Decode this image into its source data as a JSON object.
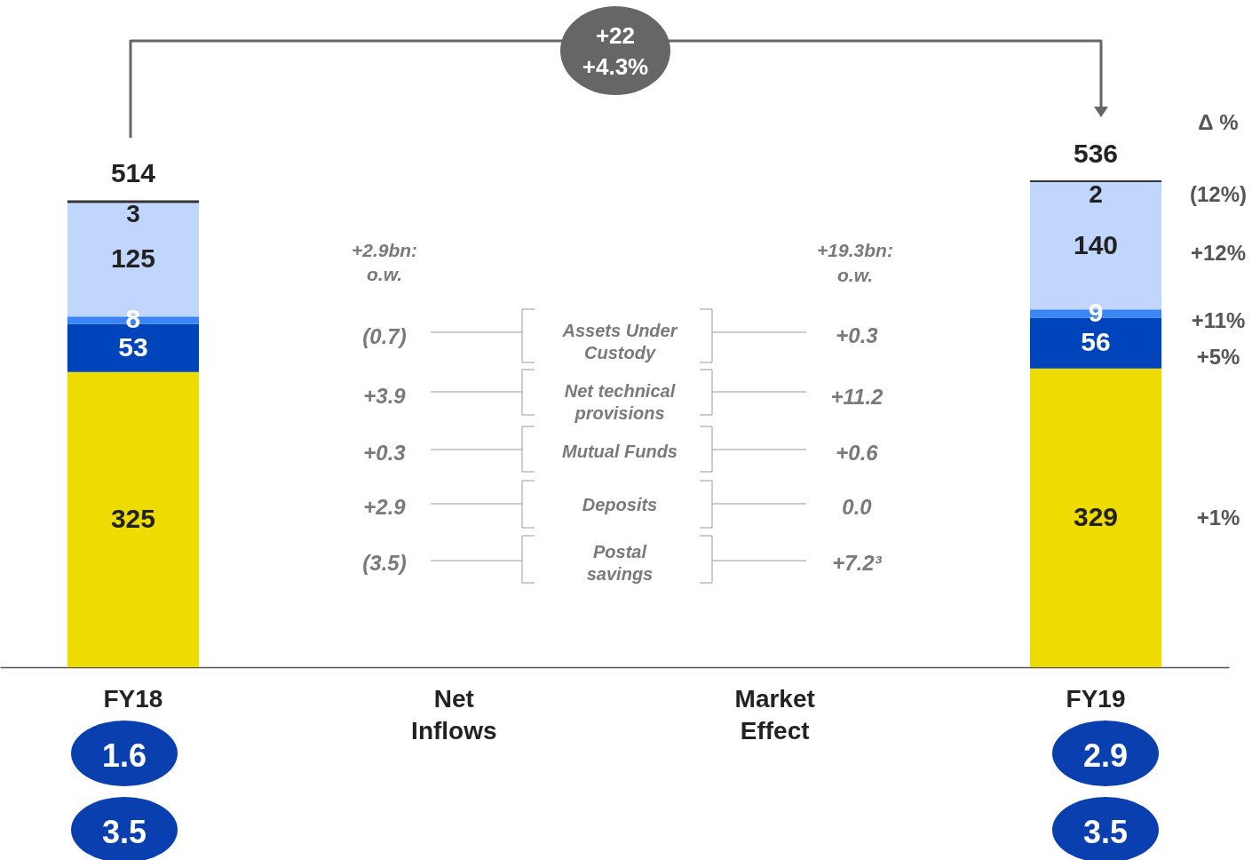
{
  "chart_data": {
    "type": "bar",
    "stacked": true,
    "data_labels": true,
    "categories": [
      "FY18",
      "Net Inflows",
      "Market Effect",
      "FY19"
    ],
    "series": [
      {
        "color": "#eedc00",
        "values": [
          325,
          null,
          null,
          329
        ]
      },
      {
        "color": "#0044bb",
        "values": [
          53,
          null,
          null,
          56
        ]
      },
      {
        "color": "#3a86f5",
        "values": [
          8,
          null,
          null,
          9
        ]
      },
      {
        "color": "#c0d6fd",
        "values": [
          125,
          null,
          null,
          140
        ]
      },
      {
        "color": "#333333",
        "values": [
          3,
          null,
          null,
          2
        ]
      }
    ],
    "totals": [
      "514",
      null,
      null,
      "536"
    ],
    "annotations": [
      "+22",
      "+4.3%",
      "+2.9bn:",
      "o.w.",
      "+19.3bn:",
      "o.w.",
      "(0.7)",
      "+3.9",
      "+0.3",
      "+2.9",
      "(3.5)",
      "Assets Under\nCustody",
      "Net technical\nprovisions",
      "Mutual Funds",
      "Deposits",
      "Postal\nsavings",
      "+0.3",
      "+11.2",
      "+0.6",
      "0.0",
      "+7.2³",
      "Δ %",
      "(12%)",
      "+12%",
      "+11%",
      "+5%",
      "+1%",
      "1.6",
      "3.5",
      "2.9",
      "3.5"
    ]
  }
}
